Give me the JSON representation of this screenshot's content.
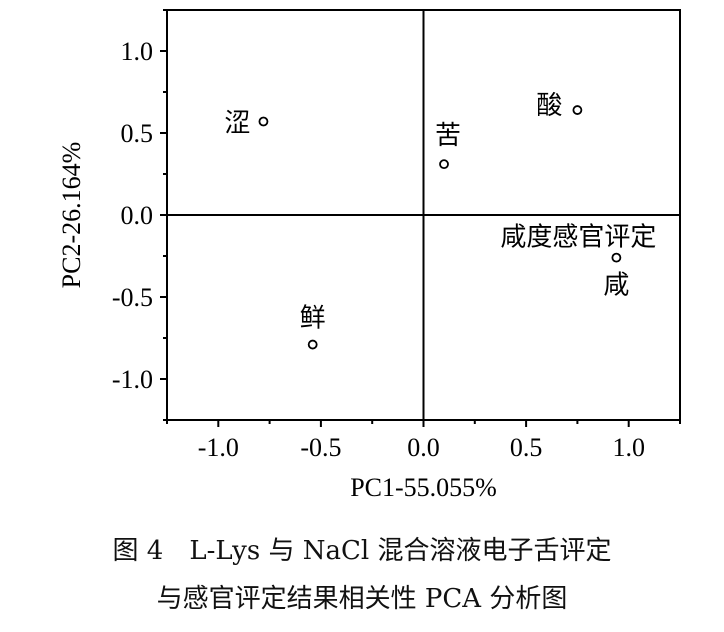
{
  "chart_data": {
    "type": "scatter",
    "xlabel": "PC1-55.055%",
    "ylabel": "PC2-26.164%",
    "xlim": [
      -1.25,
      1.25
    ],
    "ylim": [
      -1.25,
      1.25
    ],
    "xticks": [
      "-1.0",
      "-0.5",
      "0.0",
      "0.5",
      "1.0"
    ],
    "yticks": [
      "1.0",
      "0.5",
      "0.0",
      "-0.5",
      "-1.0"
    ],
    "grid": false,
    "points": [
      {
        "label": "涩",
        "x": -0.78,
        "y": 0.57
      },
      {
        "label": "苦",
        "x": 0.1,
        "y": 0.31
      },
      {
        "label": "酸",
        "x": 0.75,
        "y": 0.64
      },
      {
        "label": "咸度感官评定",
        "x": 0.94,
        "y": -0.26
      },
      {
        "label": "咸",
        "x": 0.94,
        "y": -0.26
      },
      {
        "label": "鲜",
        "x": -0.54,
        "y": -0.79
      }
    ]
  },
  "caption": {
    "line1": "图 4　L-Lys 与 NaCl 混合溶液电子舌评定",
    "line2": "与感官评定结果相关性 PCA 分析图"
  }
}
